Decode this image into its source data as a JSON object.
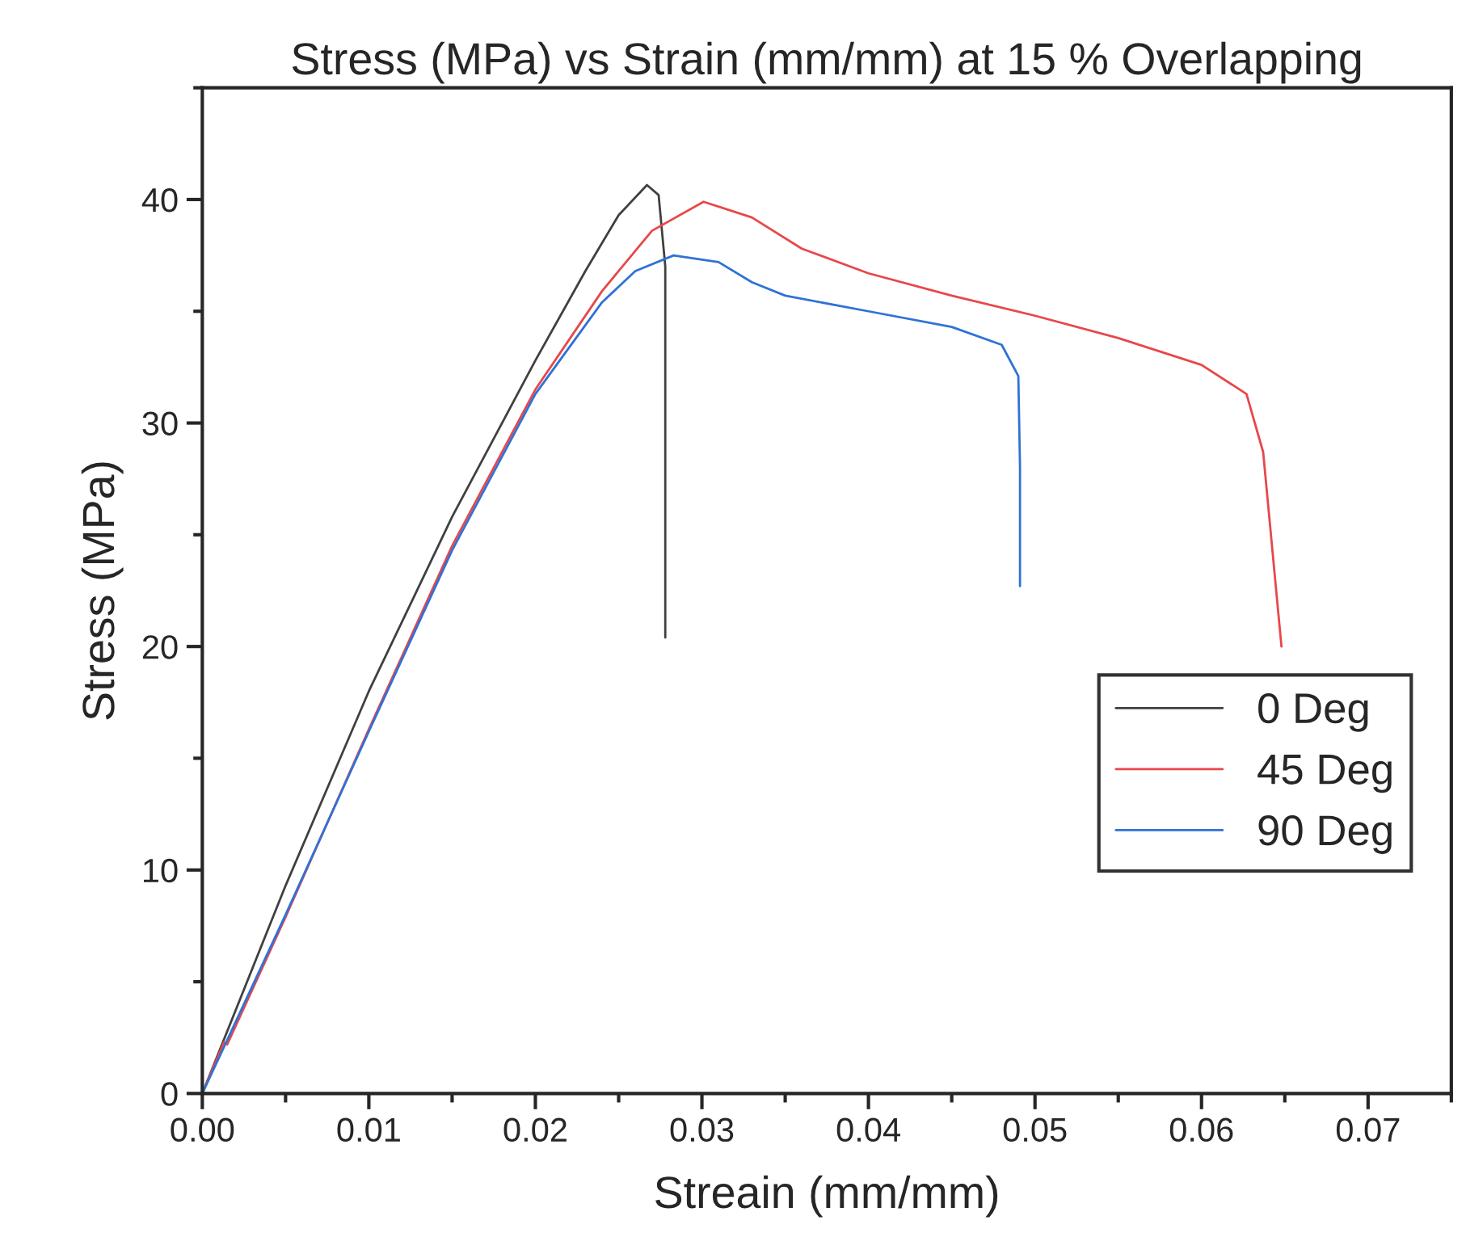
{
  "chart_data": {
    "type": "line",
    "title": "Stress (MPa) vs Strain (mm/mm) at 15 % Overlapping",
    "xlabel": "Streain (mm/mm)",
    "ylabel": "Stress (MPa)",
    "xlim": [
      0,
      0.075
    ],
    "ylim": [
      0,
      45
    ],
    "xticks": [
      {
        "value": 0,
        "label": "0.00"
      },
      {
        "value": 0.01,
        "label": "0.01"
      },
      {
        "value": 0.02,
        "label": "0.02"
      },
      {
        "value": 0.03,
        "label": "0.03"
      },
      {
        "value": 0.04,
        "label": "0.04"
      },
      {
        "value": 0.05,
        "label": "0.05"
      },
      {
        "value": 0.06,
        "label": "0.06"
      },
      {
        "value": 0.07,
        "label": "0.07"
      }
    ],
    "yticks": [
      0,
      10,
      20,
      30,
      40
    ],
    "grid": false,
    "legend": "bottom right",
    "marker": "none",
    "line_style": "solid",
    "series": [
      {
        "name": "0 Deg",
        "color": "#404040",
        "x": [
          0,
          0.005,
          0.01,
          0.015,
          0.02,
          0.023,
          0.025,
          0.0267,
          0.0274,
          0.0278,
          0.0278
        ],
        "values": [
          0,
          9.3,
          18,
          25.8,
          32.8,
          36.8,
          39.3,
          40.65,
          40.2,
          37,
          20.4
        ]
      },
      {
        "name": "45 Deg",
        "color": "#e8474a",
        "x": [
          0,
          0.0013,
          0.0015,
          0.005,
          0.01,
          0.015,
          0.02,
          0.024,
          0.027,
          0.0301,
          0.033,
          0.036,
          0.04,
          0.045,
          0.05,
          0.055,
          0.06,
          0.0627,
          0.0637,
          0.0648
        ],
        "values": [
          0,
          2.3,
          2.2,
          7.9,
          16.3,
          24.5,
          31.5,
          35.9,
          38.6,
          39.9,
          39.2,
          37.8,
          36.7,
          35.7,
          34.8,
          33.8,
          32.6,
          31.3,
          28.7,
          20.0
        ]
      },
      {
        "name": "90 Deg",
        "color": "#2f72d6",
        "x": [
          0,
          0.005,
          0.01,
          0.015,
          0.02,
          0.024,
          0.026,
          0.0283,
          0.031,
          0.033,
          0.035,
          0.04,
          0.045,
          0.048,
          0.049,
          0.0491,
          0.0491
        ],
        "values": [
          0,
          8,
          16.2,
          24.3,
          31.3,
          35.4,
          36.8,
          37.5,
          37.2,
          36.3,
          35.7,
          35.0,
          34.3,
          33.5,
          32.1,
          28,
          22.7
        ]
      }
    ]
  }
}
